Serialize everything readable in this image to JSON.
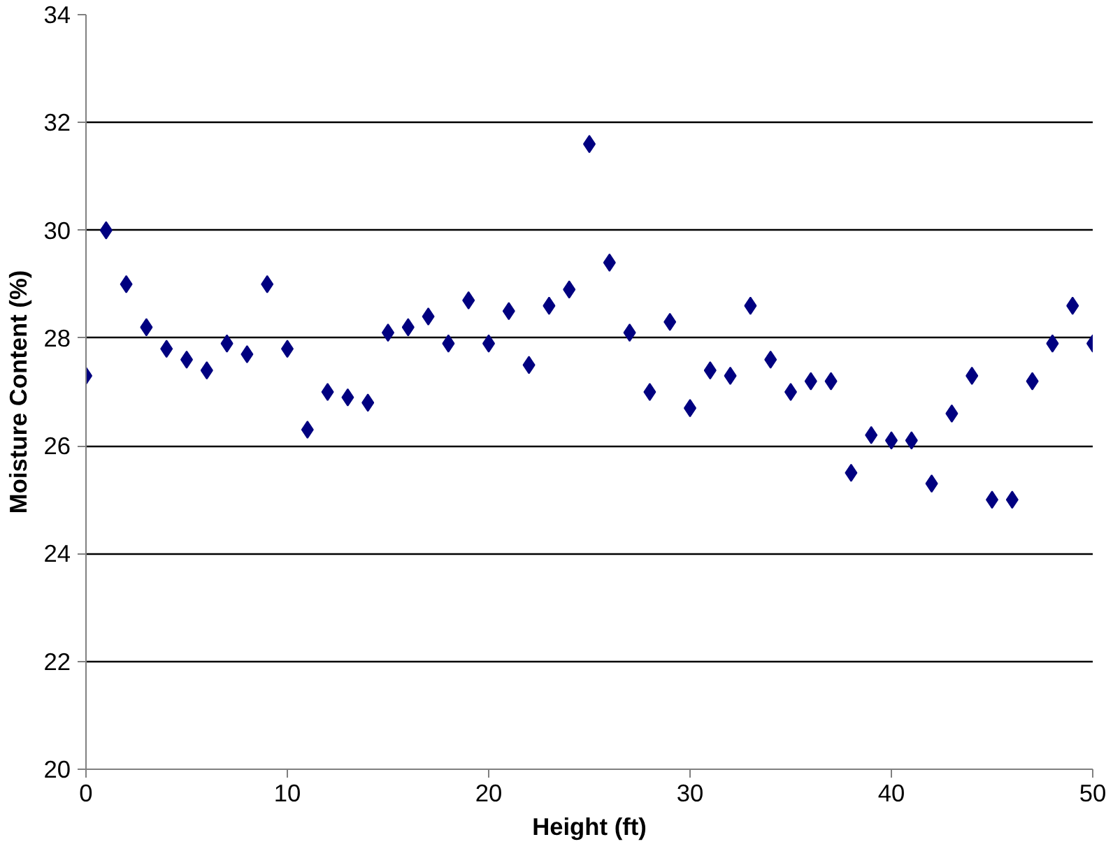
{
  "chart_data": {
    "type": "scatter",
    "xlabel": "Height (ft)",
    "ylabel": "Moisture Content (%)",
    "x": [
      0,
      1,
      2,
      3,
      4,
      5,
      6,
      7,
      8,
      9,
      10,
      11,
      12,
      13,
      14,
      15,
      16,
      17,
      18,
      19,
      20,
      21,
      22,
      23,
      24,
      25,
      26,
      27,
      28,
      29,
      30,
      31,
      32,
      33,
      34,
      35,
      36,
      37,
      38,
      39,
      40,
      41,
      42,
      43,
      44,
      45,
      46,
      47,
      48,
      49,
      50
    ],
    "series": [
      {
        "color": "#000080",
        "values": [
          27.3,
          30.0,
          29.0,
          28.2,
          27.8,
          27.6,
          27.4,
          27.9,
          27.7,
          29.0,
          27.8,
          26.3,
          27.0,
          26.9,
          26.8,
          28.1,
          28.2,
          28.4,
          27.9,
          28.7,
          27.9,
          28.5,
          27.5,
          28.6,
          28.9,
          31.6,
          29.4,
          28.1,
          27.0,
          28.3,
          26.7,
          27.4,
          27.3,
          28.6,
          27.6,
          27.0,
          27.2,
          27.2,
          25.5,
          26.2,
          26.1,
          26.1,
          25.3,
          26.6,
          27.3,
          25.0,
          25.0,
          27.2,
          27.9,
          28.6,
          27.9
        ]
      }
    ],
    "xlim": [
      0,
      50
    ],
    "xticks": [
      0,
      10,
      20,
      30,
      40,
      50
    ],
    "ylim": [
      20,
      34
    ],
    "yticks": [
      20,
      22,
      24,
      26,
      28,
      30,
      32,
      34
    ],
    "grid": "y",
    "marker": "diamond"
  }
}
